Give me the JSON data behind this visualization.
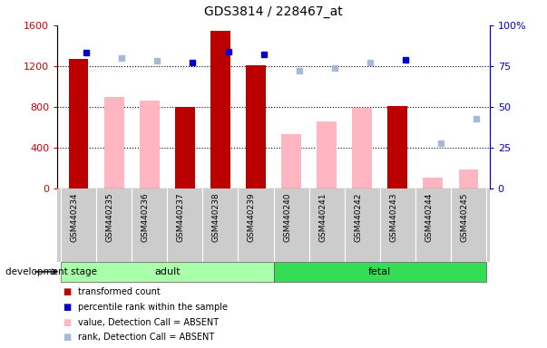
{
  "title": "GDS3814 / 228467_at",
  "categories": [
    "GSM440234",
    "GSM440235",
    "GSM440236",
    "GSM440237",
    "GSM440238",
    "GSM440239",
    "GSM440240",
    "GSM440241",
    "GSM440242",
    "GSM440243",
    "GSM440244",
    "GSM440245"
  ],
  "left_ylim": [
    0,
    1600
  ],
  "right_ylim": [
    0,
    100
  ],
  "left_yticks": [
    0,
    400,
    800,
    1200,
    1600
  ],
  "right_yticks": [
    0,
    25,
    50,
    75,
    100
  ],
  "left_ylabel_color": "#cc0000",
  "right_ylabel_color": "#0000cc",
  "transformed_count": [
    1270,
    null,
    null,
    800,
    1540,
    1210,
    null,
    null,
    null,
    810,
    null,
    null
  ],
  "absent_value": [
    null,
    900,
    860,
    null,
    null,
    null,
    530,
    660,
    790,
    null,
    105,
    190
  ],
  "percentile_rank": [
    83,
    null,
    null,
    77,
    84,
    82,
    null,
    null,
    null,
    79,
    null,
    null
  ],
  "absent_rank": [
    null,
    80,
    78,
    null,
    null,
    null,
    72,
    74,
    77,
    null,
    28,
    43
  ],
  "adult_indices": [
    0,
    1,
    2,
    3,
    4,
    5
  ],
  "fetal_indices": [
    6,
    7,
    8,
    9,
    10,
    11
  ],
  "adult_color": "#aaffaa",
  "fetal_color": "#33dd55",
  "bar_color": "#bb0000",
  "absent_bar_color": "#ffb6c1",
  "rank_color": "#0000cc",
  "absent_rank_color": "#aab8d8",
  "tick_area_color": "#cccccc",
  "bg_color": "#ffffff",
  "grid_dotted_at": [
    400,
    800,
    1200
  ],
  "legend_labels": [
    "transformed count",
    "percentile rank within the sample",
    "value, Detection Call = ABSENT",
    "rank, Detection Call = ABSENT"
  ],
  "legend_colors": [
    "#bb0000",
    "#0000cc",
    "#ffb6c1",
    "#aab8d8"
  ]
}
